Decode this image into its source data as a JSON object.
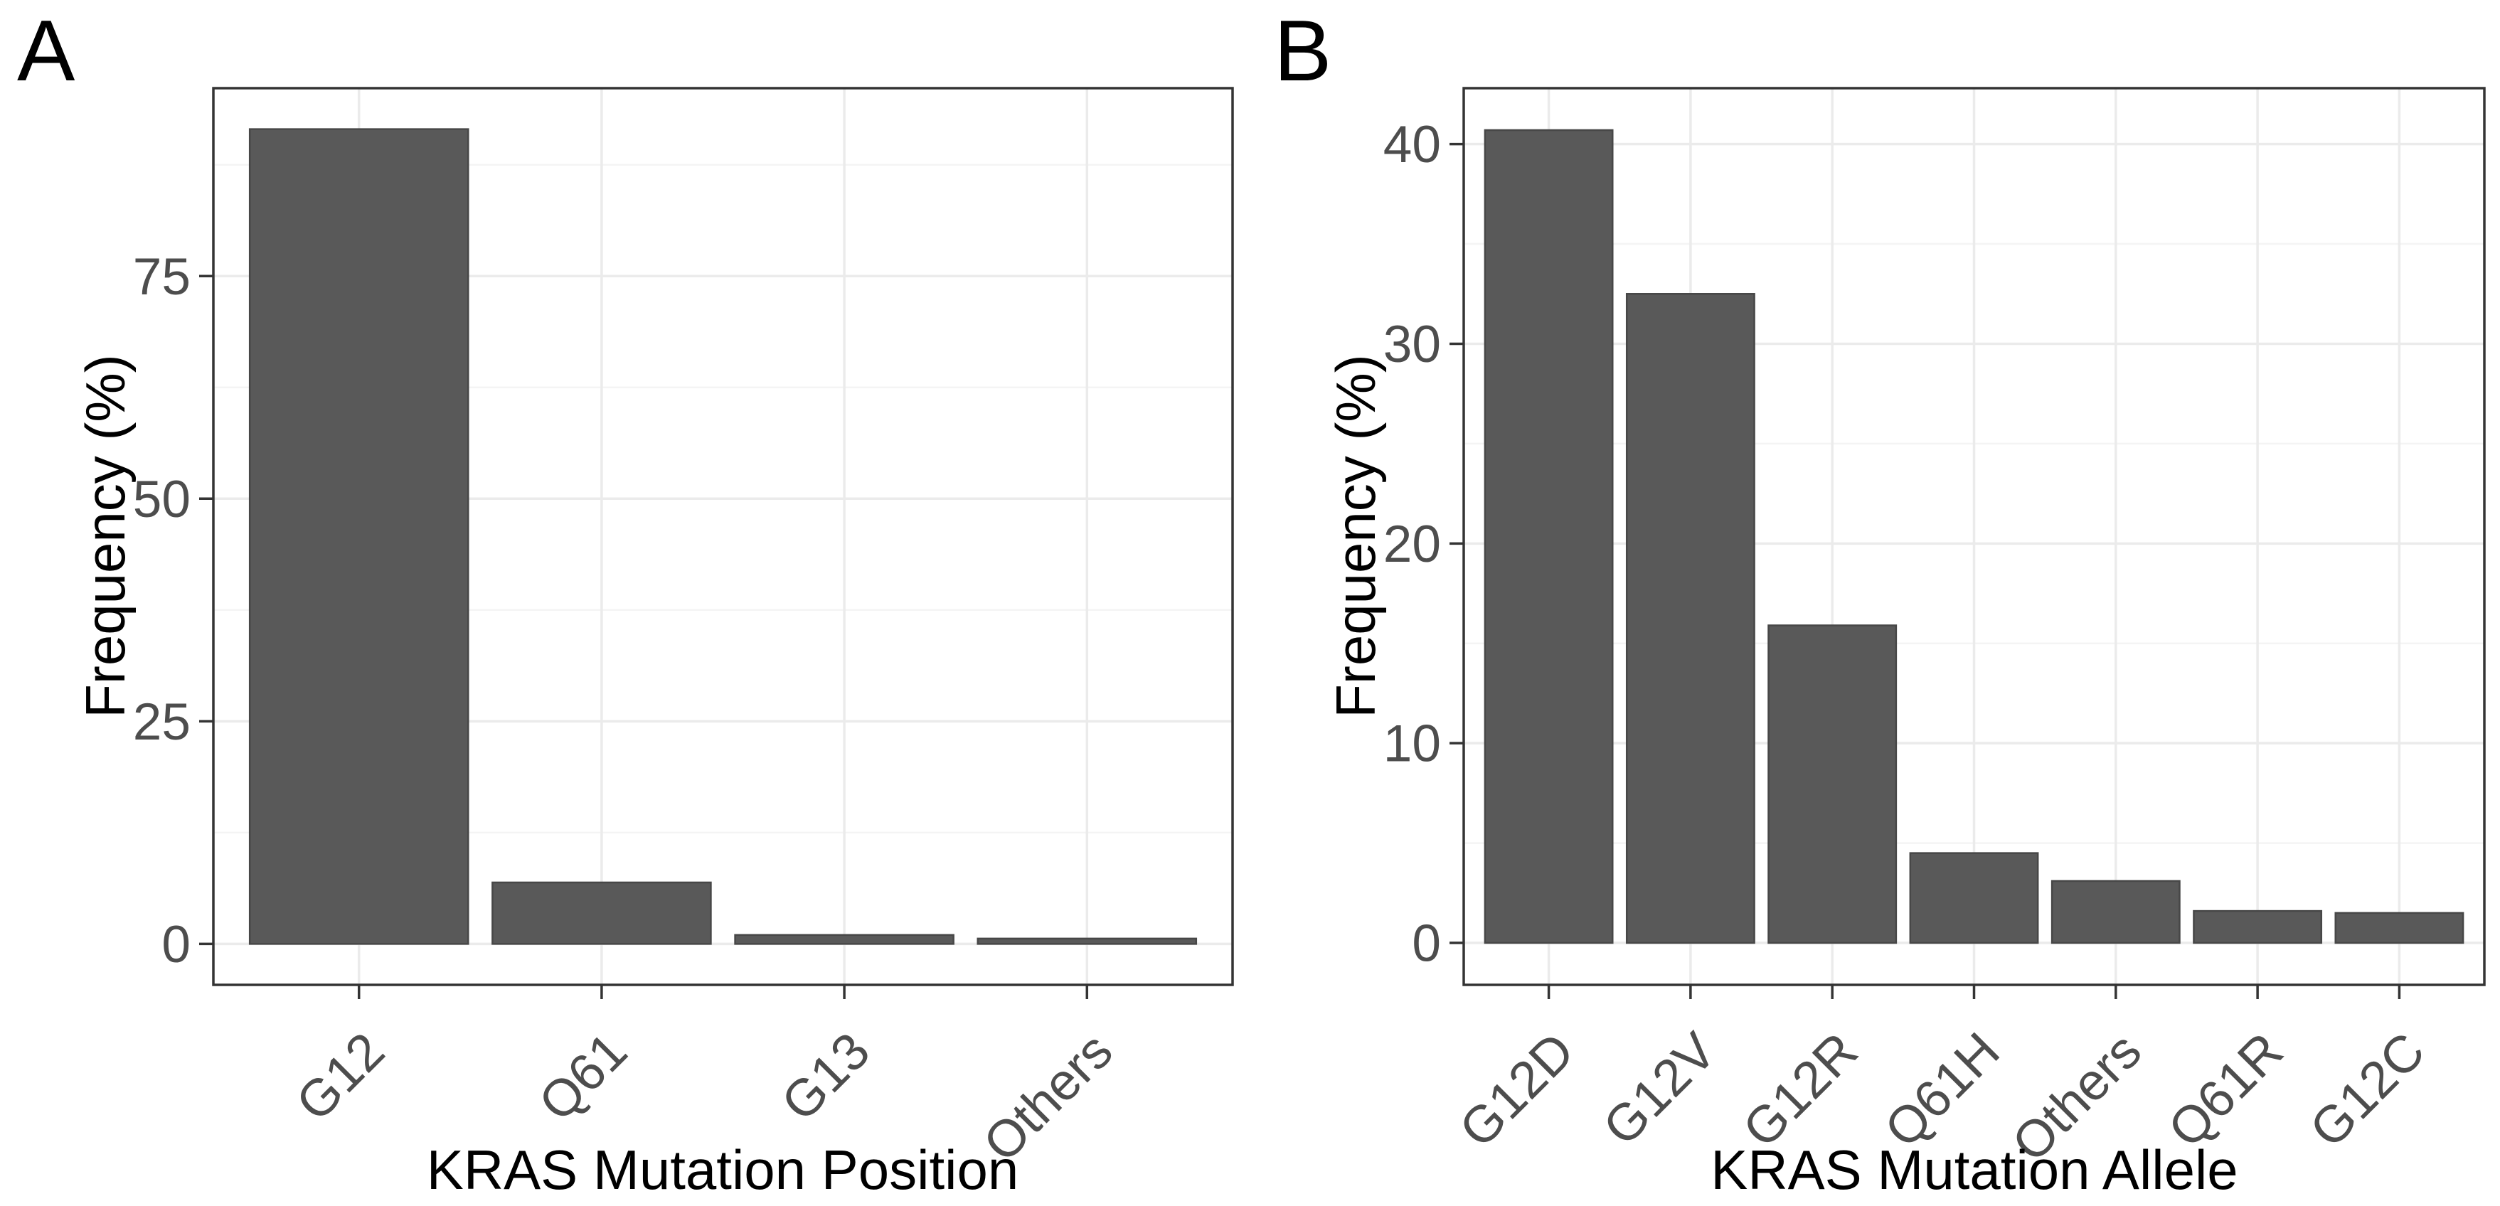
{
  "chart_data": [
    {
      "type": "bar",
      "panel_label": "A",
      "categories": [
        "G12",
        "Q61",
        "G13",
        "Others"
      ],
      "values": [
        91.5,
        6.9,
        1.0,
        0.6
      ],
      "title": "",
      "xlabel": "KRAS Mutation Position",
      "ylabel": "Frequency (%)",
      "yticks": [
        0,
        25,
        50,
        75
      ],
      "minor_ticks": [
        12.5,
        37.5,
        62.5,
        87.5
      ],
      "ylim": [
        -4.6,
        96.1
      ],
      "grid": "major+minor horizontal, major vertical at categories",
      "legend": "none",
      "bar_color": "#595959"
    },
    {
      "type": "bar",
      "panel_label": "B",
      "categories": [
        "G12D",
        "G12V",
        "G12R",
        "Q61H",
        "Others",
        "Q61R",
        "G12C"
      ],
      "values": [
        40.7,
        32.5,
        15.9,
        4.5,
        3.1,
        1.6,
        1.5
      ],
      "title": "",
      "xlabel": "KRAS Mutation Allele",
      "ylabel": "Frequency (%)",
      "yticks": [
        0,
        10,
        20,
        30,
        40
      ],
      "minor_ticks": [
        5,
        15,
        25,
        35
      ],
      "ylim": [
        -2.1,
        42.8
      ],
      "grid": "major+minor horizontal, major vertical at categories",
      "legend": "none",
      "bar_color": "#595959"
    }
  ],
  "styles": {
    "background": "#ffffff",
    "bar_fill": "#595959",
    "bar_edge": "#474747",
    "panel_border": "#343434",
    "grid_major": "#ebebeb",
    "grid_minor": "#f4f4f4",
    "tick_label_color": "#4d4d4d",
    "axis_title_color": "#000000"
  }
}
